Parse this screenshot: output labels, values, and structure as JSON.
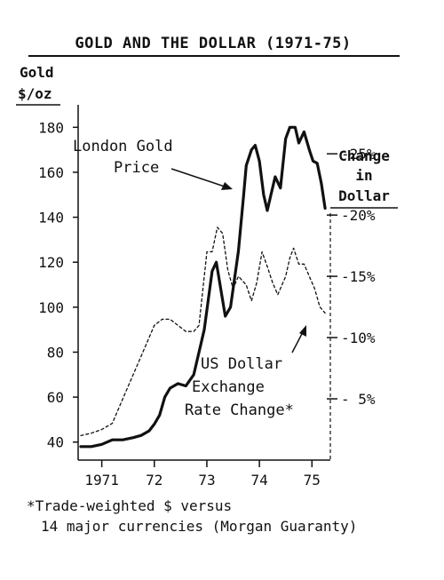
{
  "chart_data": {
    "type": "line",
    "title": "GOLD AND THE DOLLAR (1971-75)",
    "y_left_label_line1": "Gold",
    "y_left_label_line2": "$/oz",
    "y_right_label_line1": "Change",
    "y_right_label_line2": "in",
    "y_right_label_line3": "Dollar",
    "y_left_ticks": [
      "40",
      "60",
      "80",
      "100",
      "120",
      "140",
      "160",
      "180"
    ],
    "y_left_tick_values": [
      40,
      60,
      80,
      100,
      120,
      140,
      160,
      180
    ],
    "y_right_ticks": [
      "- 5%",
      "-10%",
      "-15%",
      "-20%",
      "-25%"
    ],
    "y_right_tick_values": [
      -5,
      -10,
      -15,
      -20,
      -25
    ],
    "x_ticks": [
      "1971",
      "72",
      "73",
      "74",
      "75"
    ],
    "x_tick_values": [
      1971,
      1972,
      1973,
      1974,
      1975
    ],
    "ylim_left": [
      32,
      190
    ],
    "ylim_right": [
      0,
      -29
    ],
    "xlim": [
      1970.55,
      1975.35
    ],
    "series": [
      {
        "name": "London Gold Price",
        "axis": "left",
        "style": "solid",
        "x": [
          1970.6,
          1970.8,
          1971.0,
          1971.2,
          1971.4,
          1971.6,
          1971.75,
          1971.9,
          1972.0,
          1972.1,
          1972.2,
          1972.3,
          1972.45,
          1972.6,
          1972.75,
          1972.85,
          1972.95,
          1973.02,
          1973.1,
          1973.18,
          1973.25,
          1973.35,
          1973.45,
          1973.6,
          1973.7,
          1973.75,
          1973.85,
          1973.92,
          1974.0,
          1974.08,
          1974.15,
          1974.22,
          1974.3,
          1974.4,
          1974.5,
          1974.58,
          1974.68,
          1974.75,
          1974.85,
          1974.95,
          1975.02,
          1975.1,
          1975.18,
          1975.25
        ],
        "y": [
          38,
          38,
          39,
          41,
          41,
          42,
          43,
          45,
          48,
          52,
          60,
          64,
          66,
          65,
          70,
          80,
          90,
          102,
          116,
          120,
          110,
          96,
          100,
          125,
          150,
          163,
          170,
          172,
          165,
          150,
          143,
          150,
          158,
          153,
          175,
          180,
          180,
          173,
          178,
          170,
          165,
          164,
          155,
          144
        ]
      },
      {
        "name": "US Dollar Exchange Rate Change*",
        "axis": "right",
        "style": "dashed",
        "x": [
          1970.6,
          1970.8,
          1971.0,
          1971.2,
          1971.35,
          1971.5,
          1971.65,
          1971.8,
          1971.9,
          1972.0,
          1972.15,
          1972.3,
          1972.45,
          1972.6,
          1972.75,
          1972.85,
          1973.0,
          1973.1,
          1973.2,
          1973.3,
          1973.4,
          1973.5,
          1973.6,
          1973.75,
          1973.85,
          1973.95,
          1974.05,
          1974.15,
          1974.25,
          1974.35,
          1974.5,
          1974.58,
          1974.65,
          1974.75,
          1974.85,
          1974.95,
          1975.05,
          1975.15,
          1975.25
        ],
        "y": [
          -2,
          -2.2,
          -2.5,
          -3,
          -4.5,
          -6,
          -7.5,
          -9,
          -10,
          -11,
          -11.5,
          -11.5,
          -11,
          -10.5,
          -10.5,
          -11,
          -17,
          -17,
          -19,
          -18.5,
          -15.5,
          -14,
          -15,
          -14.3,
          -13,
          -14.5,
          -17,
          -15.8,
          -14.5,
          -13.5,
          -15,
          -16.5,
          -17.3,
          -16,
          -16,
          -15,
          -14,
          -12.5,
          -12
        ]
      }
    ],
    "annotations": [
      "London Gold",
      "Price",
      "US Dollar",
      "Exchange",
      "Rate Change*"
    ],
    "footnote_line1": "*Trade-weighted $ versus",
    "footnote_line2": "14 major currencies (Morgan Guaranty)",
    "grid": false
  }
}
